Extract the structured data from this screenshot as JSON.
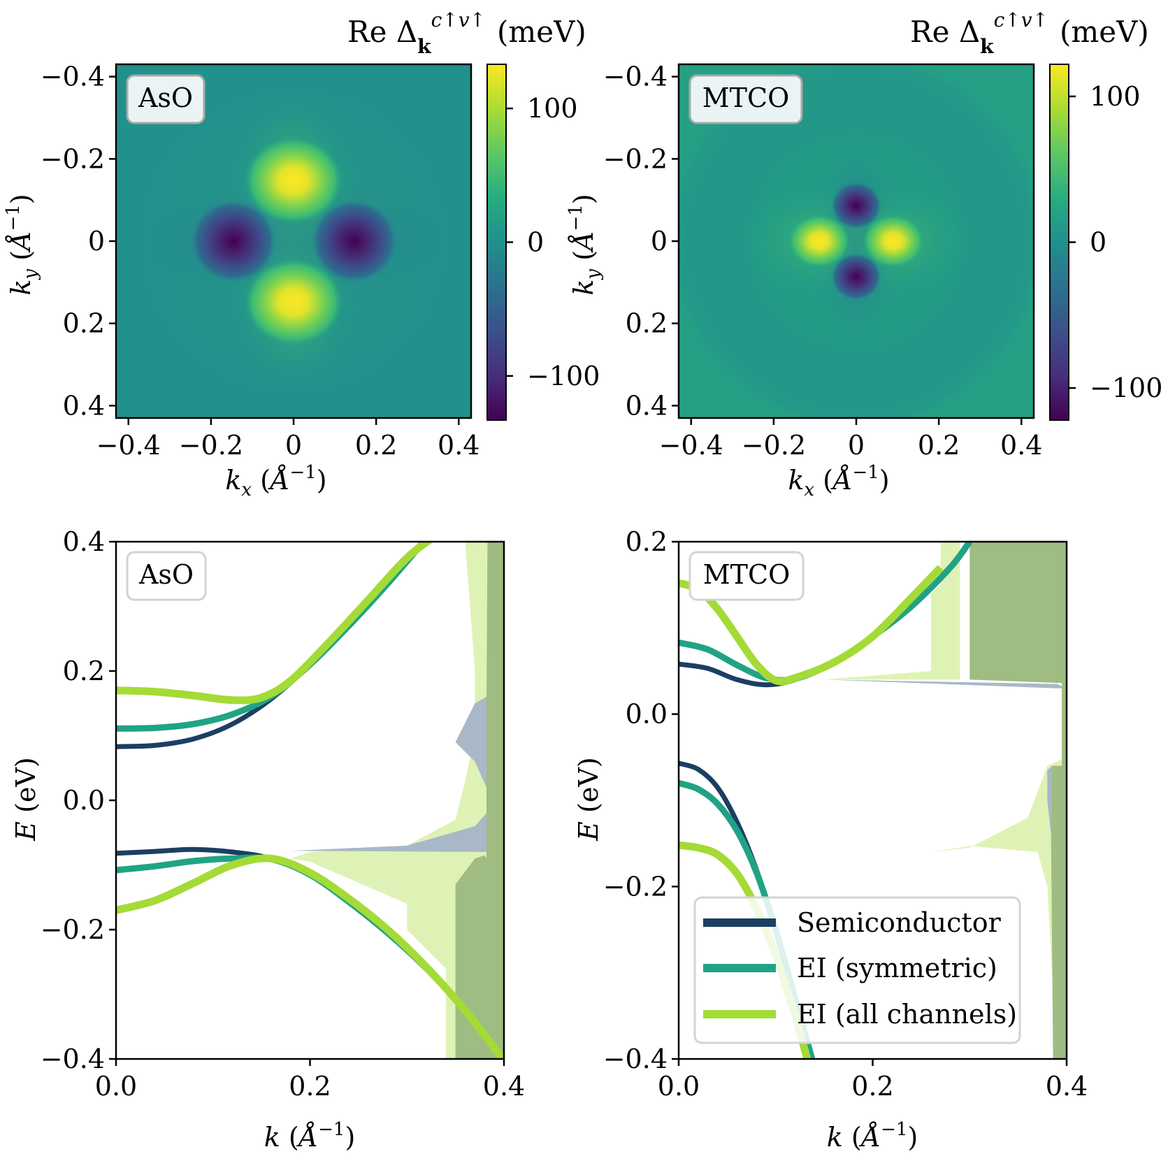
{
  "colors": {
    "semiconductor": "#1b3f63",
    "ei_symmetric": "#20a384",
    "ei_all": "#a4db36",
    "dos_dark_green": "#9fbc82",
    "dos_light_green": "#dff2b6",
    "dos_gray_blue": "#a9b8c6"
  },
  "chart_data": [
    {
      "type": "heatmap",
      "panel": "top-left",
      "label": "AsO",
      "xlabel": "k_x (Å^-1)",
      "ylabel": "k_y (Å^-1)",
      "colorbar_title": "Re Δ_k^{c↑v↑} (meV)",
      "colormap": "viridis",
      "xlim": [
        -0.43,
        0.43
      ],
      "ylim": [
        -0.43,
        0.43
      ],
      "y_inverted": true,
      "clim": [
        -133,
        133
      ],
      "x_ticks": [
        {
          "v": -0.4,
          "t": "−0.4"
        },
        {
          "v": -0.2,
          "t": "−0.2"
        },
        {
          "v": 0,
          "t": "0"
        },
        {
          "v": 0.2,
          "t": "0.2"
        },
        {
          "v": 0.4,
          "t": "0.4"
        }
      ],
      "y_ticks": [
        {
          "v": -0.4,
          "t": "−0.4"
        },
        {
          "v": -0.2,
          "t": "−0.2"
        },
        {
          "v": 0,
          "t": "0"
        },
        {
          "v": 0.2,
          "t": "0.2"
        },
        {
          "v": 0.4,
          "t": "0.4"
        }
      ],
      "cbar_ticks": [
        {
          "v": 100,
          "t": "100"
        },
        {
          "v": 0,
          "t": "0"
        },
        {
          "v": -100,
          "t": "−100"
        }
      ],
      "features": [
        {
          "kind": "max",
          "kx": 0,
          "ky": -0.15,
          "value": 133
        },
        {
          "kind": "max",
          "kx": 0,
          "ky": 0.15,
          "value": 133
        },
        {
          "kind": "min",
          "kx": -0.15,
          "ky": 0,
          "value": -133
        },
        {
          "kind": "min",
          "kx": 0.15,
          "ky": 0,
          "value": -133
        }
      ]
    },
    {
      "type": "heatmap",
      "panel": "top-right",
      "label": "MTCO",
      "xlabel": "k_x (Å^-1)",
      "ylabel": "k_y (Å^-1)",
      "colorbar_title": "Re Δ_k^{c↑v↑} (meV)",
      "colormap": "viridis",
      "xlim": [
        -0.43,
        0.43
      ],
      "ylim": [
        -0.43,
        0.43
      ],
      "y_inverted": true,
      "clim": [
        -122,
        122
      ],
      "x_ticks": [
        {
          "v": -0.4,
          "t": "−0.4"
        },
        {
          "v": -0.2,
          "t": "−0.2"
        },
        {
          "v": 0,
          "t": "0"
        },
        {
          "v": 0.2,
          "t": "0.2"
        },
        {
          "v": 0.4,
          "t": "0.4"
        }
      ],
      "y_ticks": [
        {
          "v": -0.4,
          "t": "−0.4"
        },
        {
          "v": -0.2,
          "t": "−0.2"
        },
        {
          "v": 0,
          "t": "0"
        },
        {
          "v": 0.2,
          "t": "0.2"
        },
        {
          "v": 0.4,
          "t": "0.4"
        }
      ],
      "cbar_ticks": [
        {
          "v": 100,
          "t": "100"
        },
        {
          "v": 0,
          "t": "0"
        },
        {
          "v": -100,
          "t": "−100"
        }
      ],
      "features": [
        {
          "kind": "max",
          "kx": -0.09,
          "ky": 0,
          "value": 122
        },
        {
          "kind": "max",
          "kx": 0.09,
          "ky": 0,
          "value": 122
        },
        {
          "kind": "min",
          "kx": 0,
          "ky": -0.085,
          "value": -122
        },
        {
          "kind": "min",
          "kx": 0,
          "ky": 0.085,
          "value": -122
        }
      ]
    },
    {
      "type": "line",
      "panel": "bottom-left",
      "label": "AsO",
      "xlabel": "k (Å^-1)",
      "ylabel": "E (eV)",
      "xlim": [
        0,
        0.4
      ],
      "ylim": [
        -0.4,
        0.4
      ],
      "x_ticks": [
        {
          "v": 0,
          "t": "0.0"
        },
        {
          "v": 0.2,
          "t": "0.2"
        },
        {
          "v": 0.4,
          "t": "0.4"
        }
      ],
      "y_ticks": [
        {
          "v": 0.4,
          "t": "0.4"
        },
        {
          "v": 0.2,
          "t": "0.2"
        },
        {
          "v": 0,
          "t": "0.0"
        },
        {
          "v": -0.2,
          "t": "−0.2"
        },
        {
          "v": -0.4,
          "t": "−0.4"
        }
      ],
      "series": [
        {
          "name": "Semiconductor",
          "key": "semiconductor",
          "branch": "conduction",
          "x": [
            0,
            0.04,
            0.08,
            0.12,
            0.16,
            0.2,
            0.24,
            0.28,
            0.32
          ],
          "y": [
            0.083,
            0.085,
            0.095,
            0.118,
            0.157,
            0.21,
            0.27,
            0.335,
            0.405
          ]
        },
        {
          "name": "EI (symmetric)",
          "key": "ei_symmetric",
          "branch": "conduction",
          "x": [
            0,
            0.04,
            0.08,
            0.12,
            0.16,
            0.2,
            0.24,
            0.28,
            0.32
          ],
          "y": [
            0.111,
            0.112,
            0.118,
            0.133,
            0.161,
            0.21,
            0.27,
            0.335,
            0.405
          ]
        },
        {
          "name": "EI (all channels)",
          "key": "ei_all",
          "branch": "conduction",
          "x": [
            0,
            0.04,
            0.08,
            0.12,
            0.15,
            0.18,
            0.22,
            0.26,
            0.3,
            0.33
          ],
          "y": [
            0.17,
            0.168,
            0.162,
            0.155,
            0.159,
            0.185,
            0.245,
            0.31,
            0.375,
            0.41
          ]
        },
        {
          "name": "Semiconductor",
          "key": "semiconductor",
          "branch": "valence",
          "x": [
            0,
            0.04,
            0.08,
            0.12,
            0.16,
            0.2,
            0.24,
            0.28,
            0.32,
            0.36,
            0.4
          ],
          "y": [
            -0.082,
            -0.079,
            -0.076,
            -0.08,
            -0.09,
            -0.115,
            -0.157,
            -0.205,
            -0.26,
            -0.325,
            -0.4
          ]
        },
        {
          "name": "EI (symmetric)",
          "key": "ei_symmetric",
          "branch": "valence",
          "x": [
            0,
            0.04,
            0.08,
            0.12,
            0.16,
            0.2,
            0.24,
            0.28,
            0.32,
            0.36,
            0.4
          ],
          "y": [
            -0.108,
            -0.102,
            -0.094,
            -0.09,
            -0.091,
            -0.115,
            -0.157,
            -0.205,
            -0.26,
            -0.325,
            -0.4
          ]
        },
        {
          "name": "EI (all channels)",
          "key": "ei_all",
          "branch": "valence",
          "x": [
            0,
            0.04,
            0.08,
            0.12,
            0.16,
            0.2,
            0.24,
            0.28,
            0.32,
            0.36,
            0.4
          ],
          "y": [
            -0.17,
            -0.155,
            -0.128,
            -0.1,
            -0.09,
            -0.112,
            -0.152,
            -0.2,
            -0.258,
            -0.325,
            -0.402
          ]
        }
      ],
      "dos_shading": [
        {
          "key": "dos_light_green",
          "x": [
            0.4,
            0.34,
            0.34,
            0.3,
            0.3,
            0.2,
            0.18,
            0.2,
            0.3,
            0.35,
            0.36,
            0.37,
            0.37,
            0.36,
            0.4
          ],
          "y": [
            -0.4,
            -0.4,
            -0.26,
            -0.2,
            -0.16,
            -0.095,
            -0.09,
            -0.08,
            -0.07,
            -0.03,
            0.03,
            0.1,
            0.2,
            0.4,
            0.4
          ]
        },
        {
          "key": "dos_gray_blue",
          "x": [
            0.4,
            0.18,
            0.3,
            0.37,
            0.382,
            0.382,
            0.37,
            0.35,
            0.37,
            0.382,
            0.4
          ],
          "y": [
            -0.08,
            -0.078,
            -0.07,
            -0.04,
            -0.02,
            0.02,
            0.06,
            0.09,
            0.15,
            0.16,
            0.16
          ]
        },
        {
          "key": "dos_dark_green",
          "x": [
            0.4,
            0.35,
            0.35,
            0.37,
            0.38,
            0.382,
            0.382,
            0.383,
            0.4
          ],
          "y": [
            -0.4,
            -0.4,
            -0.13,
            -0.09,
            -0.085,
            -0.09,
            0.15,
            0.4,
            0.4
          ]
        }
      ]
    },
    {
      "type": "line",
      "panel": "bottom-right",
      "label": "MTCO",
      "xlabel": "k (Å^-1)",
      "ylabel": "E (eV)",
      "xlim": [
        0,
        0.4
      ],
      "ylim": [
        -0.4,
        0.2
      ],
      "x_ticks": [
        {
          "v": 0,
          "t": "0.0"
        },
        {
          "v": 0.2,
          "t": "0.2"
        },
        {
          "v": 0.4,
          "t": "0.4"
        }
      ],
      "y_ticks": [
        {
          "v": 0.2,
          "t": "0.2"
        },
        {
          "v": 0,
          "t": "0.0"
        },
        {
          "v": -0.2,
          "t": "−0.2"
        },
        {
          "v": -0.4,
          "t": "−0.4"
        }
      ],
      "legend": {
        "placement": "lower-right",
        "entries": [
          "Semiconductor",
          "EI (symmetric)",
          "EI (all channels)"
        ]
      },
      "series": [
        {
          "name": "Semiconductor",
          "key": "semiconductor",
          "branch": "conduction",
          "x": [
            0,
            0.03,
            0.06,
            0.09,
            0.12,
            0.16,
            0.2,
            0.24,
            0.28,
            0.3
          ],
          "y": [
            0.058,
            0.053,
            0.04,
            0.034,
            0.04,
            0.06,
            0.09,
            0.125,
            0.17,
            0.2
          ]
        },
        {
          "name": "EI (symmetric)",
          "key": "ei_symmetric",
          "branch": "conduction",
          "x": [
            0,
            0.03,
            0.06,
            0.09,
            0.12,
            0.16,
            0.2,
            0.24,
            0.28,
            0.3
          ],
          "y": [
            0.083,
            0.075,
            0.057,
            0.042,
            0.041,
            0.06,
            0.09,
            0.125,
            0.17,
            0.2
          ]
        },
        {
          "name": "EI (all channels)",
          "key": "ei_all",
          "branch": "conduction",
          "x": [
            0,
            0.02,
            0.04,
            0.06,
            0.08,
            0.1,
            0.12,
            0.16,
            0.2,
            0.24,
            0.27
          ],
          "y": [
            0.152,
            0.145,
            0.122,
            0.09,
            0.058,
            0.039,
            0.042,
            0.06,
            0.09,
            0.135,
            0.17
          ]
        },
        {
          "name": "Semiconductor",
          "key": "semiconductor",
          "branch": "valence",
          "x": [
            0,
            0.02,
            0.04,
            0.06,
            0.08,
            0.1,
            0.12,
            0.14
          ],
          "y": [
            -0.057,
            -0.064,
            -0.085,
            -0.125,
            -0.18,
            -0.25,
            -0.33,
            -0.41
          ]
        },
        {
          "name": "EI (symmetric)",
          "key": "ei_symmetric",
          "branch": "valence",
          "x": [
            0,
            0.02,
            0.04,
            0.06,
            0.08,
            0.1,
            0.12,
            0.14
          ],
          "y": [
            -0.08,
            -0.087,
            -0.104,
            -0.135,
            -0.183,
            -0.25,
            -0.33,
            -0.41
          ]
        },
        {
          "name": "EI (all channels)",
          "key": "ei_all",
          "branch": "valence",
          "x": [
            0,
            0.02,
            0.04,
            0.06,
            0.08,
            0.1,
            0.12,
            0.135
          ],
          "y": [
            -0.152,
            -0.155,
            -0.163,
            -0.185,
            -0.225,
            -0.28,
            -0.35,
            -0.41
          ]
        }
      ],
      "dos_shading": [
        {
          "key": "dos_light_green",
          "x": [
            0.4,
            0.39,
            0.385,
            0.38,
            0.37,
            0.3,
            0.26,
            0.3,
            0.36,
            0.38,
            0.4,
            0.4,
            0.29,
            0.29,
            0.27,
            0.27,
            0.26,
            0.26,
            0.15,
            0.26,
            0.4
          ],
          "y": [
            -0.4,
            -0.4,
            -0.3,
            -0.2,
            -0.16,
            -0.153,
            -0.16,
            -0.155,
            -0.12,
            -0.06,
            -0.05,
            0.04,
            0.04,
            0.2,
            0.2,
            0.15,
            0.14,
            0.05,
            0.04,
            0.04,
            0.04
          ]
        },
        {
          "key": "dos_gray_blue",
          "x": [
            0.4,
            0.385,
            0.38,
            0.38,
            0.385,
            0.4,
            0.4,
            0.39,
            0.15,
            0.39,
            0.4
          ],
          "y": [
            -0.15,
            -0.15,
            -0.1,
            -0.065,
            -0.06,
            -0.06,
            0.03,
            0.03,
            0.04,
            0.035,
            0.03
          ]
        },
        {
          "key": "dos_dark_green",
          "x": [
            0.4,
            0.386,
            0.384,
            0.385,
            0.388,
            0.395,
            0.395,
            0.3,
            0.3,
            0.4
          ],
          "y": [
            -0.4,
            -0.4,
            -0.15,
            -0.06,
            -0.06,
            -0.06,
            0.036,
            0.04,
            0.2,
            0.2
          ]
        }
      ]
    }
  ]
}
